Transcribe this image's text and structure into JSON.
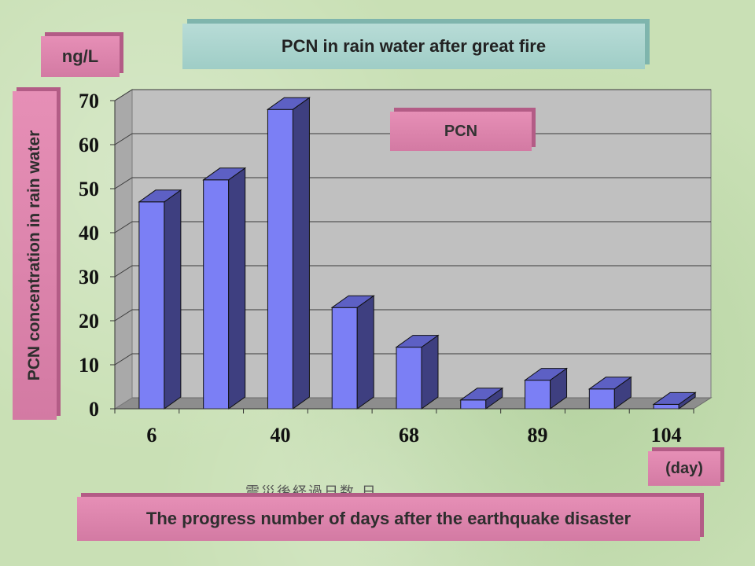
{
  "unit_label": "ng/L",
  "day_label": "(day)",
  "garbled_text": "震災後経過日数 日",
  "chart_data": {
    "type": "bar",
    "title": "PCN in rain water after great fire",
    "legend_label": "PCN",
    "ylabel": "PCN concentration in rain water",
    "xlabel": "The progress number of days after the earthquake disaster",
    "ylim": [
      0,
      70
    ],
    "yticks": [
      0,
      10,
      20,
      30,
      40,
      50,
      60,
      70
    ],
    "x_tick_labels": [
      "6",
      "40",
      "68",
      "89",
      "104"
    ],
    "values": [
      47,
      52,
      68,
      23,
      14,
      2,
      6.5,
      4.5,
      1
    ],
    "grid": true,
    "bar_color": "#7b7ff5",
    "bar_side_color": "#3e3f80",
    "bar_top_color": "#5d60c4"
  }
}
